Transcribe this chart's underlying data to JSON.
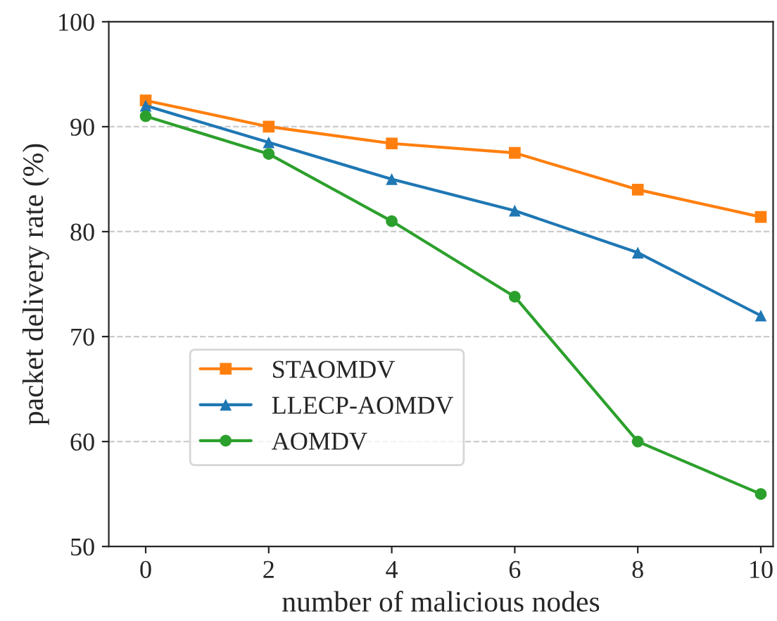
{
  "chart_data": {
    "type": "line",
    "xlabel": "number of malicious nodes",
    "ylabel": "packet delivery rate (%)",
    "x": [
      0,
      2,
      4,
      6,
      8,
      10
    ],
    "series": [
      {
        "name": "STAOMDV",
        "color": "#ff7f0e",
        "marker": "square",
        "values": [
          92.5,
          90,
          88.4,
          87.5,
          84,
          81.4
        ]
      },
      {
        "name": "LLECP-AOMDV",
        "color": "#1f77b4",
        "marker": "triangle",
        "values": [
          92,
          88.5,
          85,
          82,
          78,
          72
        ]
      },
      {
        "name": "AOMDV",
        "color": "#2ca02c",
        "marker": "circle",
        "values": [
          91,
          87.4,
          81,
          73.8,
          60,
          55
        ]
      }
    ],
    "xlim": [
      -0.6,
      10.2
    ],
    "ylim": [
      50,
      100
    ],
    "xticks": [
      0,
      2,
      4,
      6,
      8,
      10
    ],
    "yticks": [
      50,
      60,
      70,
      80,
      90,
      100
    ],
    "grid": "y",
    "legend": "lower left",
    "line_style": "solid"
  }
}
